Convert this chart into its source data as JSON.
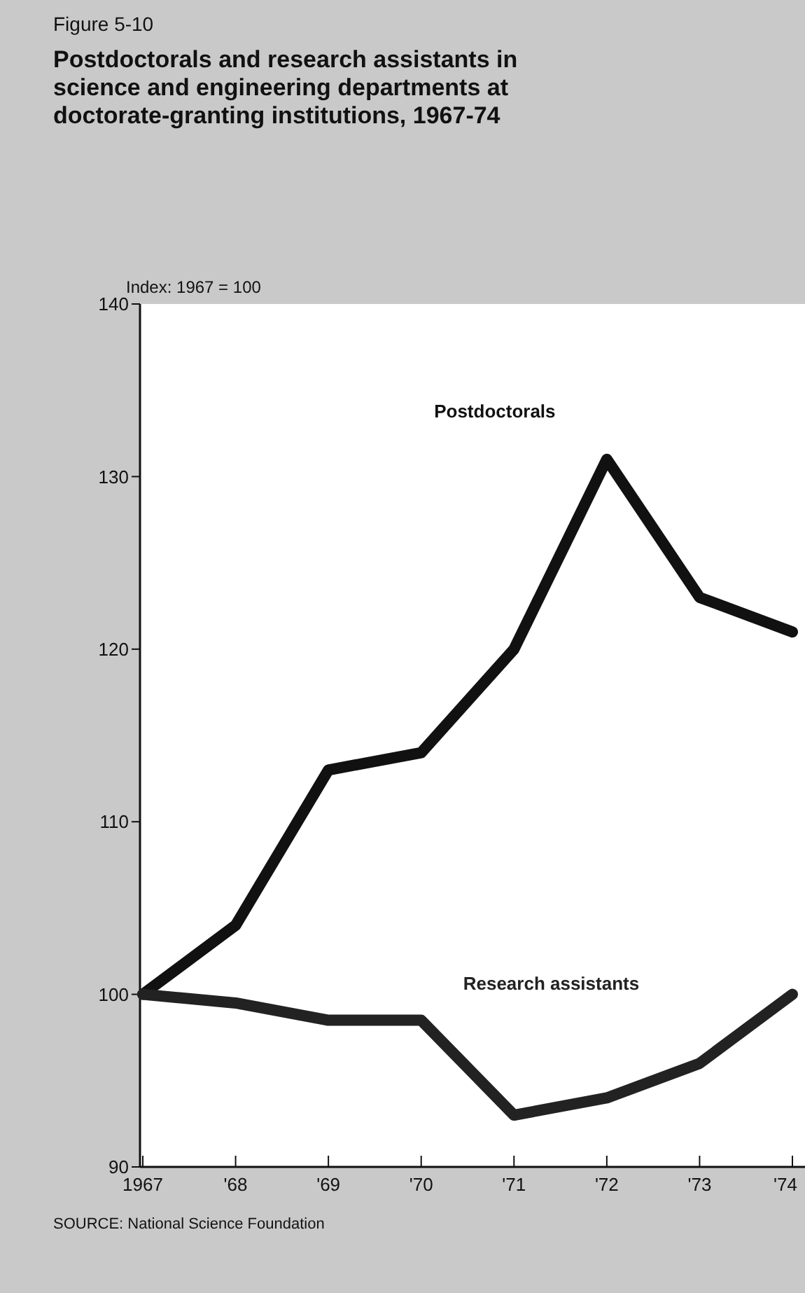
{
  "chart_data": {
    "type": "line",
    "title": "Postdoctorals and research assistants in science and engineering departments at doctorate-granting institutions, 1967-74",
    "ylabel": "Index: 1967 = 100",
    "annotations": [
      "Figure 5-10",
      "SOURCE: National Science Foundation"
    ],
    "categories": [
      "1967",
      "'68",
      "'69",
      "'70",
      "'71",
      "'72",
      "'73",
      "'74"
    ],
    "series": [
      {
        "name": "Postdoctorals",
        "color": "#111111",
        "values": [
          100,
          104,
          113,
          114,
          120,
          131,
          123,
          121
        ]
      },
      {
        "name": "Research assistants",
        "color": "#222222",
        "values": [
          100,
          99.5,
          98.5,
          98.5,
          93,
          94,
          96,
          100
        ]
      }
    ],
    "ylim": [
      90,
      140
    ],
    "yticks": [
      90,
      100,
      110,
      120,
      130,
      140
    ],
    "grid": false,
    "legend": false,
    "marker": "none",
    "line_style": "solid"
  }
}
